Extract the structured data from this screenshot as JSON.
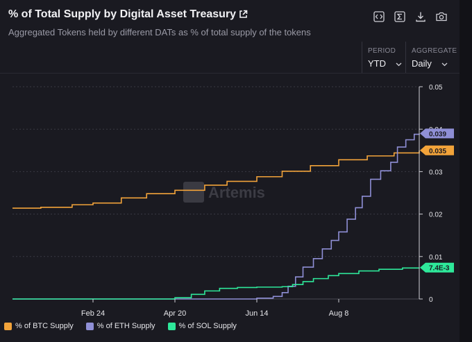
{
  "header": {
    "title": "% of Total Supply by Digital Asset Treasury",
    "subtitle": "Aggregated Tokens held by different DATs as % of total supply of the tokens",
    "toolbar_icons": [
      "embed-code-icon",
      "sum-icon",
      "download-icon",
      "camera-icon"
    ]
  },
  "controls": {
    "period": {
      "label": "PERIOD",
      "value": "YTD"
    },
    "aggregate": {
      "label": "AGGREGATE",
      "value": "Daily"
    }
  },
  "watermark": "Artemis",
  "colors": {
    "btc": "#f2a33a",
    "eth": "#8f8fd6",
    "sol": "#2ee89a"
  },
  "chart_data": {
    "type": "line",
    "x_ticks": [
      "Feb 24",
      "Apr 20",
      "Jun 14",
      "Aug 8"
    ],
    "y_ticks": [
      "0",
      "0.01",
      "0.02",
      "0.03",
      "0.04",
      "0.05"
    ],
    "ylim": [
      0,
      0.05
    ],
    "grid": true,
    "legend_position": "bottom",
    "series": [
      {
        "name": "% of BTC Supply",
        "color": "#f2a33a",
        "last_label": "0.035",
        "points": [
          [
            "Jan 1",
            0.0214
          ],
          [
            "Jan 20",
            0.0216
          ],
          [
            "Feb 10",
            0.0222
          ],
          [
            "Feb 24",
            0.0226
          ],
          [
            "Mar 15",
            0.0238
          ],
          [
            "Apr 1",
            0.0248
          ],
          [
            "Apr 20",
            0.0256
          ],
          [
            "May 10",
            0.0268
          ],
          [
            "May 25",
            0.0277
          ],
          [
            "Jun 14",
            0.0288
          ],
          [
            "Jul 1",
            0.0301
          ],
          [
            "Jul 20",
            0.0314
          ],
          [
            "Aug 8",
            0.0328
          ],
          [
            "Aug 25",
            0.0337
          ],
          [
            "Sep 10",
            0.0344
          ],
          [
            "Sep 25",
            0.035
          ]
        ]
      },
      {
        "name": "% of ETH Supply",
        "color": "#8f8fd6",
        "last_label": "0.039",
        "points": [
          [
            "Jan 1",
            0
          ],
          [
            "May 10",
            0
          ],
          [
            "Jun 14",
            0.0002
          ],
          [
            "Jun 25",
            0.0006
          ],
          [
            "Jul 1",
            0.0015
          ],
          [
            "Jul 5",
            0.003
          ],
          [
            "Jul 10",
            0.0052
          ],
          [
            "Jul 15",
            0.0075
          ],
          [
            "Jul 22",
            0.0095
          ],
          [
            "Jul 28",
            0.0118
          ],
          [
            "Aug 3",
            0.0138
          ],
          [
            "Aug 8",
            0.0158
          ],
          [
            "Aug 13",
            0.0188
          ],
          [
            "Aug 18",
            0.0215
          ],
          [
            "Aug 22",
            0.0242
          ],
          [
            "Aug 27",
            0.0282
          ],
          [
            "Sep 2",
            0.0302
          ],
          [
            "Sep 8",
            0.0322
          ],
          [
            "Sep 12",
            0.0358
          ],
          [
            "Sep 17",
            0.0375
          ],
          [
            "Sep 22",
            0.0388
          ],
          [
            "Sep 25",
            0.039
          ]
        ]
      },
      {
        "name": "% of SOL Supply",
        "color": "#2ee89a",
        "last_label": "7.4E-3",
        "points": [
          [
            "Jan 1",
            0
          ],
          [
            "Apr 1",
            0
          ],
          [
            "Apr 20",
            0.0003
          ],
          [
            "May 1",
            0.0011
          ],
          [
            "May 10",
            0.0019
          ],
          [
            "May 20",
            0.0025
          ],
          [
            "Jun 1",
            0.0027
          ],
          [
            "Jun 14",
            0.0028
          ],
          [
            "Jul 1",
            0.0029
          ],
          [
            "Jul 8",
            0.0034
          ],
          [
            "Jul 15",
            0.0041
          ],
          [
            "Jul 22",
            0.0048
          ],
          [
            "Aug 1",
            0.0055
          ],
          [
            "Aug 8",
            0.006
          ],
          [
            "Aug 20",
            0.0066
          ],
          [
            "Sep 1",
            0.007
          ],
          [
            "Sep 15",
            0.0073
          ],
          [
            "Sep 25",
            0.0074
          ]
        ]
      }
    ]
  }
}
